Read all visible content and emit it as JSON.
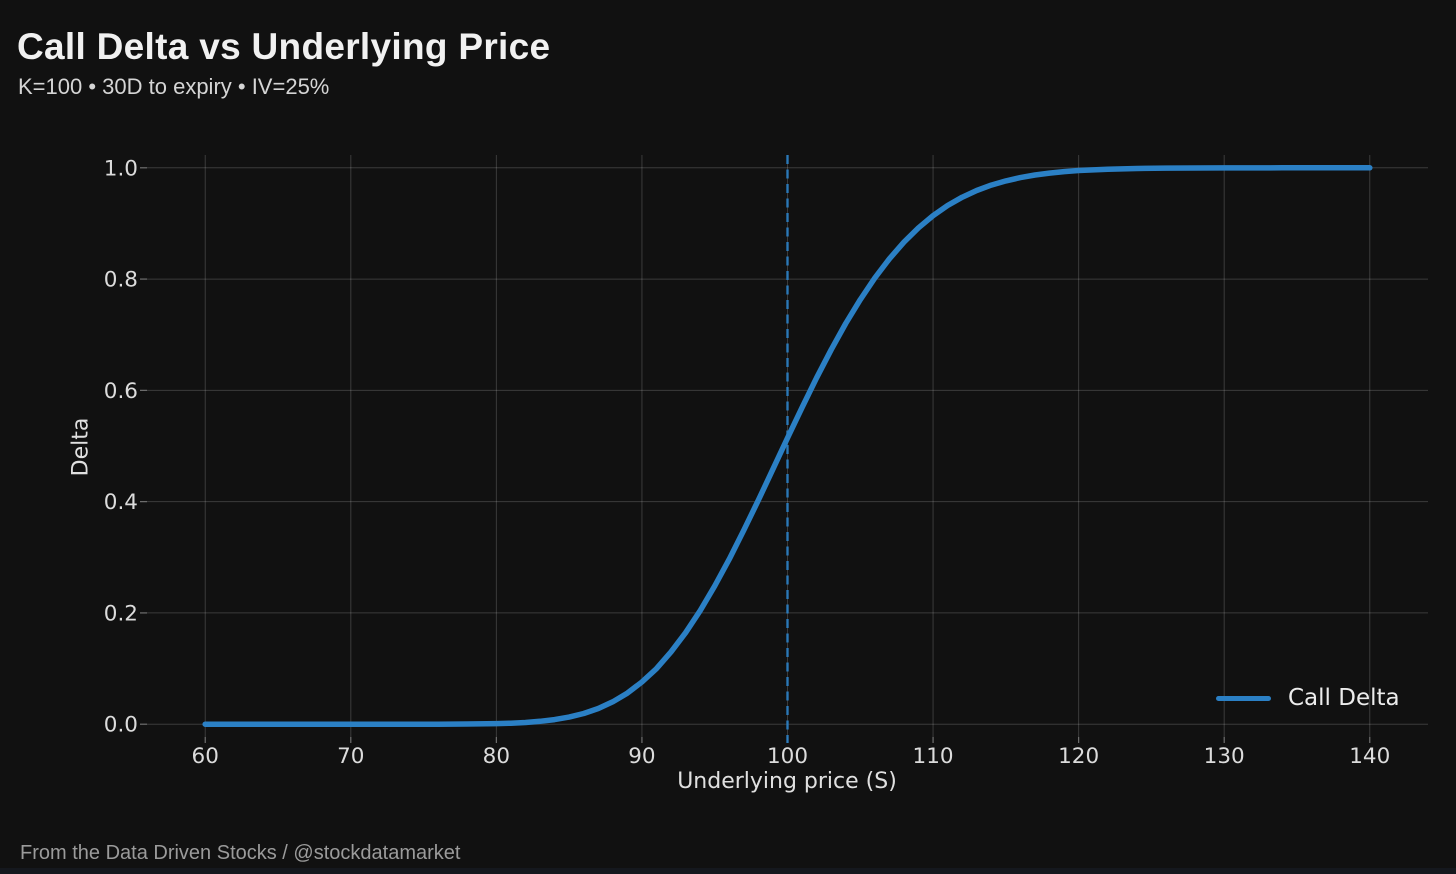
{
  "header": {
    "title": "Call Delta vs Underlying Price",
    "subtitle": "K=100 • 30D to expiry • IV=25%"
  },
  "footer": {
    "credit": "From the Data Driven Stocks / @stockdatamarket"
  },
  "colors": {
    "background": "#111111",
    "curve": "#2b80c5",
    "grid": "rgba(255,255,255,0.18)",
    "tick_label": "#dcdcdc",
    "title": "#f1f1f1",
    "subtitle": "#d5d5d5",
    "footer": "#9b9b9b",
    "bottom_strip": "#15181e"
  },
  "chart_data": {
    "type": "line",
    "title": "Call Delta vs Underlying Price",
    "subtitle": "K=100 • 30D to expiry • IV=25%",
    "xlabel": "Underlying price (S)",
    "ylabel": "Delta",
    "xlim": [
      56,
      144
    ],
    "ylim": [
      -0.023,
      1.023
    ],
    "x_ticks": [
      60,
      70,
      80,
      90,
      100,
      110,
      120,
      130,
      140
    ],
    "y_ticks": [
      0.0,
      0.2,
      0.4,
      0.6,
      0.8,
      1.0
    ],
    "grid": true,
    "legend_position": "lower right",
    "reference_line": {
      "type": "vline",
      "x": 100,
      "style": "dashed",
      "color": "#2b80c5"
    },
    "series": [
      {
        "name": "Call Delta",
        "color": "#2b80c5",
        "x": [
          60,
          62,
          64,
          66,
          68,
          70,
          72,
          74,
          76,
          78,
          80,
          81,
          82,
          83,
          84,
          85,
          86,
          87,
          88,
          89,
          90,
          91,
          92,
          93,
          94,
          95,
          96,
          97,
          98,
          99,
          100,
          101,
          102,
          103,
          104,
          105,
          106,
          107,
          108,
          109,
          110,
          111,
          112,
          113,
          114,
          115,
          116,
          117,
          118,
          119,
          120,
          122,
          124,
          126,
          128,
          130,
          132,
          134,
          136,
          138,
          140
        ],
        "y": [
          0,
          0,
          0,
          0,
          0,
          4e-07,
          3e-06,
          1.6e-05,
          7.4e-05,
          0.0003,
          0.001,
          0.0018,
          0.0031,
          0.0052,
          0.0083,
          0.0128,
          0.0193,
          0.0282,
          0.0402,
          0.0559,
          0.0758,
          0.1,
          0.13,
          0.1644,
          0.2041,
          0.2483,
          0.2967,
          0.3486,
          0.4028,
          0.4583,
          0.5143,
          0.5693,
          0.6226,
          0.673,
          0.7201,
          0.7632,
          0.802,
          0.8364,
          0.8664,
          0.8922,
          0.914,
          0.9322,
          0.9471,
          0.9592,
          0.9689,
          0.9765,
          0.9824,
          0.987,
          0.9905,
          0.9931,
          0.9951,
          0.9975,
          0.9988,
          0.9994,
          0.9997,
          0.9999,
          0.9999,
          1,
          1,
          1,
          1
        ]
      }
    ]
  }
}
